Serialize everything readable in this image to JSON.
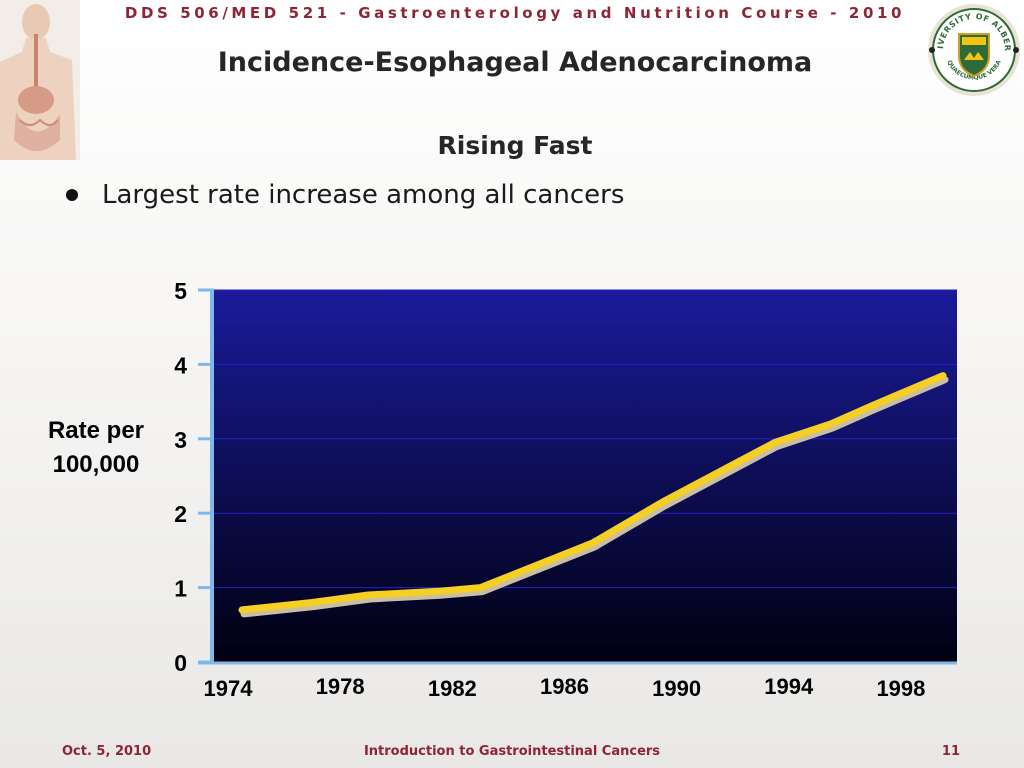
{
  "header": {
    "course": "DDS 506/MED 521 - Gastroenterology and Nutrition Course - 2010",
    "title": "Incidence-Esophageal Adenocarcinoma",
    "subtitle": "Rising Fast"
  },
  "bullets": [
    "Largest rate increase among all cancers"
  ],
  "chart_data": {
    "type": "line",
    "ylabel": "Rate per 100,000",
    "yticks": [
      "0",
      "1",
      "2",
      "3",
      "4",
      "5"
    ],
    "ylim": [
      0,
      5
    ],
    "xlim": [
      1973.5,
      2000
    ],
    "xticks": [
      {
        "label": "1974",
        "year": 1974
      },
      {
        "label": "1978",
        "year": 1978
      },
      {
        "label": "1982",
        "year": 1982
      },
      {
        "label": "1986",
        "year": 1986
      },
      {
        "label": "1990",
        "year": 1990
      },
      {
        "label": "1994",
        "year": 1994
      },
      {
        "label": "1998",
        "year": 1998
      }
    ],
    "series": [
      {
        "x": [
          1974.5,
          1977,
          1979,
          1981.5,
          1983,
          1987,
          1989.5,
          1993.5,
          1995.5,
          1997,
          1999.5
        ],
        "values": [
          0.7,
          0.8,
          0.9,
          0.95,
          1.0,
          1.6,
          2.15,
          2.95,
          3.2,
          3.45,
          3.85
        ]
      }
    ],
    "grid": true,
    "colors": {
      "line": "#f5cf21",
      "line_shadow": "#c9bfa6",
      "plot_bg_top": "#1b1b9c",
      "plot_bg_bottom": "#000010",
      "gridline": "#2222cc",
      "axis": "#7fb8ea"
    }
  },
  "footer": {
    "date": "Oct. 5, 2010",
    "center": "Introduction to Gastrointestinal Cancers",
    "page": "11"
  },
  "logo": {
    "university": "UNIVERSITY OF ALBERTA",
    "motto": "QUAECUMQUE VERA"
  }
}
